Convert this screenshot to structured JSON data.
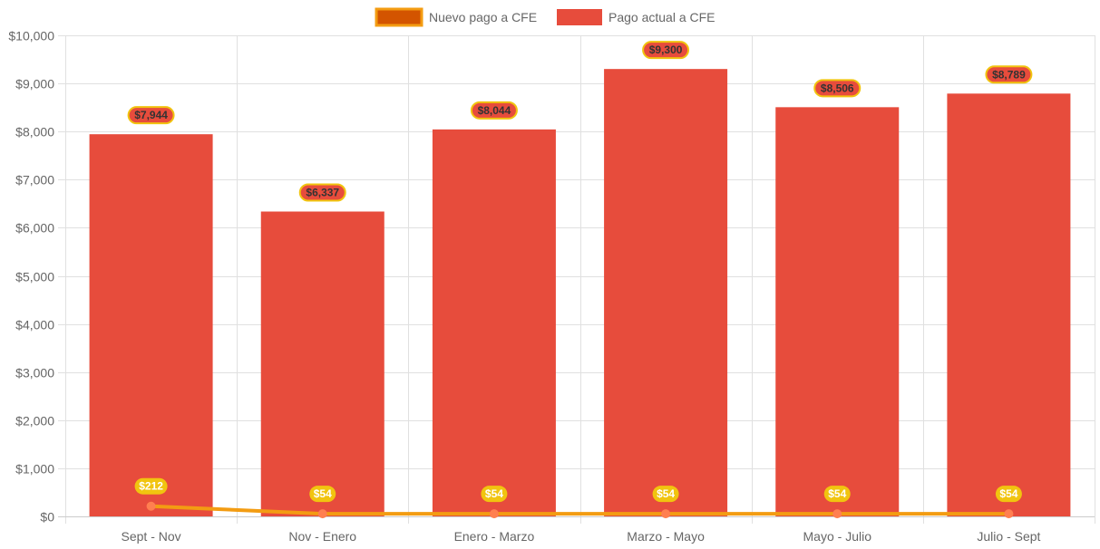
{
  "chart_data": {
    "type": "bar",
    "categories": [
      "Sept - Nov",
      "Nov - Enero",
      "Enero - Marzo",
      "Marzo - Mayo",
      "Mayo - Julio",
      "Julio - Sept"
    ],
    "ylim": [
      0,
      10000
    ],
    "y_ticks": [
      0,
      1000,
      2000,
      3000,
      4000,
      5000,
      6000,
      7000,
      8000,
      9000,
      10000
    ],
    "y_tick_labels": [
      "$0",
      "$1,000",
      "$2,000",
      "$3,000",
      "$4,000",
      "$5,000",
      "$6,000",
      "$7,000",
      "$8,000",
      "$9,000",
      "$10,000"
    ],
    "grid": true,
    "legend_position": "top",
    "series": [
      {
        "name": "Nuevo pago a CFE",
        "kind": "line",
        "color": "#f39c12",
        "legend_fill": "#d35400",
        "values": [
          212,
          54,
          54,
          54,
          54,
          54
        ],
        "labels": [
          "$212",
          "$54",
          "$54",
          "$54",
          "$54",
          "$54"
        ],
        "label_fill": "#f1c40f",
        "label_text_color": "#ffffff",
        "point_color": "#ff7f50"
      },
      {
        "name": "Pago actual a CFE",
        "kind": "bar",
        "color": "#e74c3c",
        "values": [
          7944,
          6337,
          8044,
          9300,
          8506,
          8789
        ],
        "labels": [
          "$7,944",
          "$6,337",
          "$8,044",
          "$9,300",
          "$8,506",
          "$8,789"
        ],
        "label_fill": "#e74c3c",
        "label_stroke": "#f1c40f",
        "label_text_color": "#333333"
      }
    ]
  }
}
